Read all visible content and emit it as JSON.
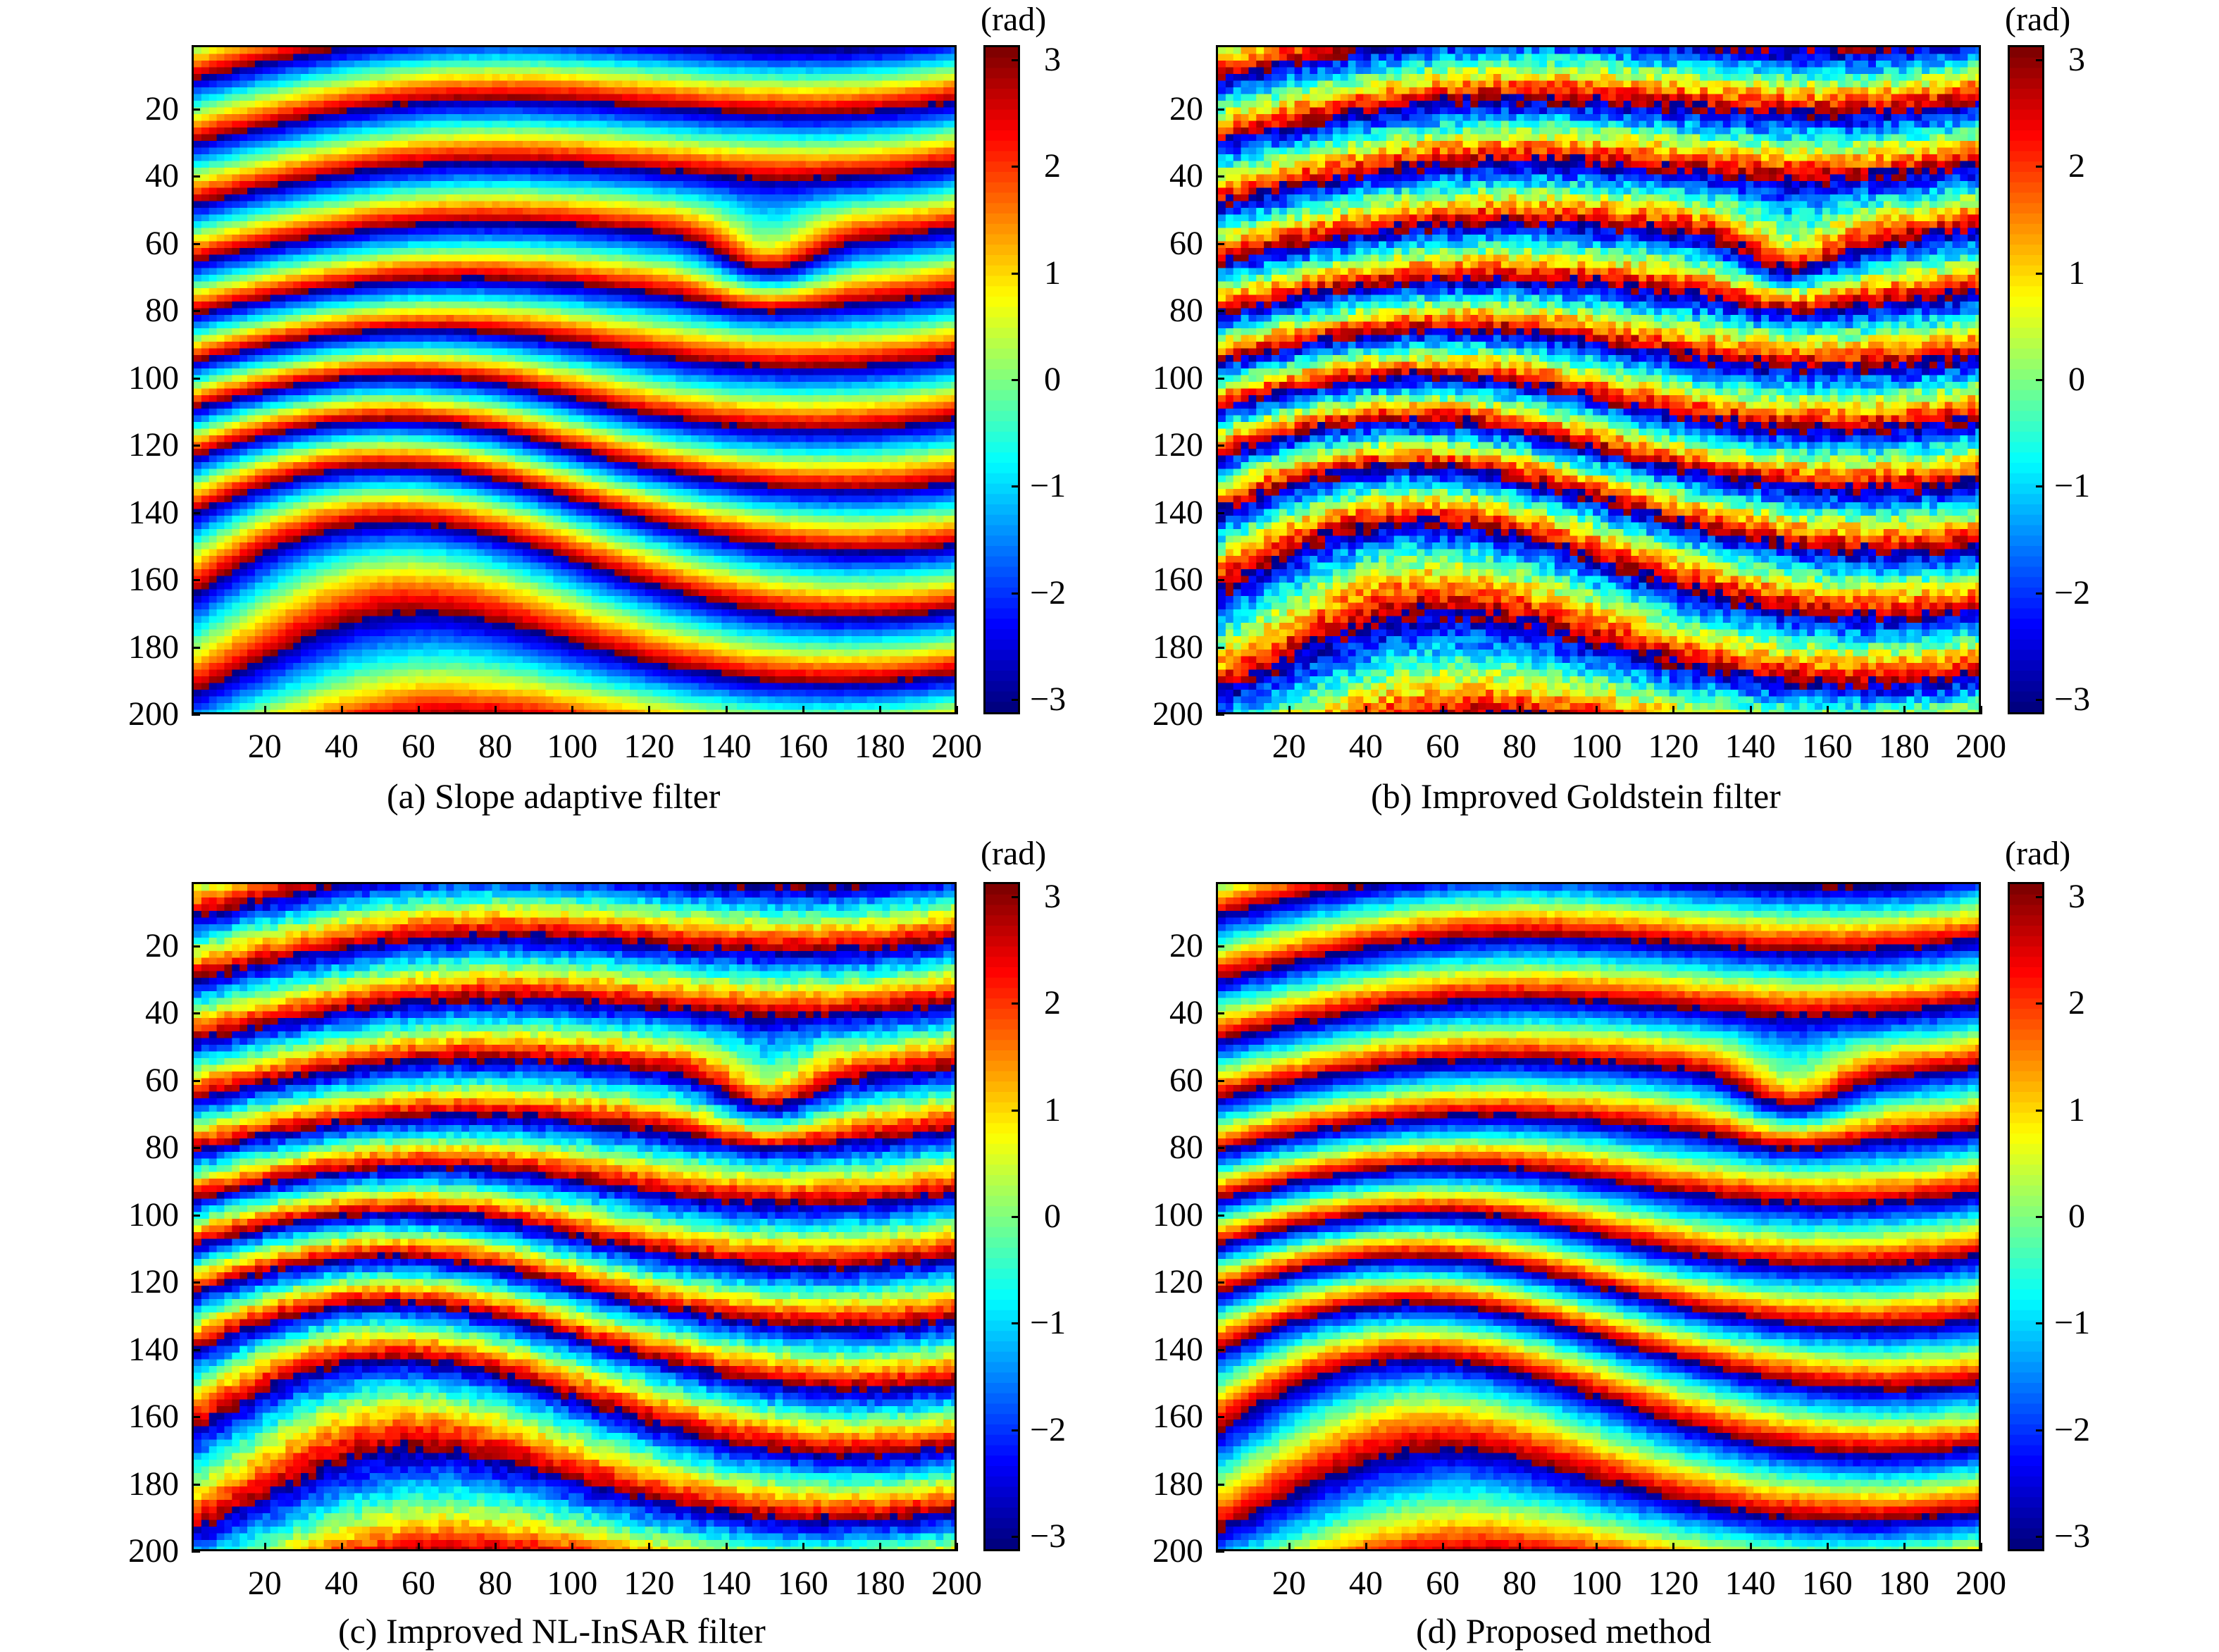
{
  "chart_data": [
    {
      "type": "heatmap",
      "title": "(a) Slope adaptive filter",
      "x_ticks": [
        "20",
        "40",
        "60",
        "80",
        "100",
        "120",
        "140",
        "160",
        "180",
        "200"
      ],
      "y_ticks": [
        "20",
        "40",
        "60",
        "80",
        "100",
        "120",
        "140",
        "160",
        "180",
        "200"
      ],
      "xlim": [
        1,
        200
      ],
      "ylim": [
        1,
        200
      ],
      "colorbar": {
        "unit": "(rad)",
        "ticks": [
          "3",
          "2",
          "1",
          "0",
          "−1",
          "−2",
          "−3"
        ],
        "range": [
          -3.14,
          3.14
        ]
      },
      "noise": 0.1
    },
    {
      "type": "heatmap",
      "title": "(b) Improved Goldstein filter",
      "x_ticks": [
        "20",
        "40",
        "60",
        "80",
        "100",
        "120",
        "140",
        "160",
        "180",
        "200"
      ],
      "y_ticks": [
        "20",
        "40",
        "60",
        "80",
        "100",
        "120",
        "140",
        "160",
        "180",
        "200"
      ],
      "xlim": [
        1,
        200
      ],
      "ylim": [
        1,
        200
      ],
      "colorbar": {
        "unit": "(rad)",
        "ticks": [
          "3",
          "2",
          "1",
          "0",
          "−1",
          "−2",
          "−3"
        ],
        "range": [
          -3.14,
          3.14
        ]
      },
      "noise": 0.55
    },
    {
      "type": "heatmap",
      "title": "(c) Improved NL-InSAR filter",
      "x_ticks": [
        "20",
        "40",
        "60",
        "80",
        "100",
        "120",
        "140",
        "160",
        "180",
        "200"
      ],
      "y_ticks": [
        "20",
        "40",
        "60",
        "80",
        "100",
        "120",
        "140",
        "160",
        "180",
        "200"
      ],
      "xlim": [
        1,
        200
      ],
      "ylim": [
        1,
        200
      ],
      "colorbar": {
        "unit": "(rad)",
        "ticks": [
          "3",
          "2",
          "1",
          "0",
          "−1",
          "−2",
          "−3"
        ],
        "range": [
          -3.14,
          3.14
        ]
      },
      "noise": 0.3
    },
    {
      "type": "heatmap",
      "title": "(d) Proposed method",
      "x_ticks": [
        "20",
        "40",
        "60",
        "80",
        "100",
        "120",
        "140",
        "160",
        "180",
        "200"
      ],
      "y_ticks": [
        "20",
        "40",
        "60",
        "80",
        "100",
        "120",
        "140",
        "160",
        "180",
        "200"
      ],
      "xlim": [
        1,
        200
      ],
      "ylim": [
        1,
        200
      ],
      "colorbar": {
        "unit": "(rad)",
        "ticks": [
          "3",
          "2",
          "1",
          "0",
          "−1",
          "−2",
          "−3"
        ],
        "range": [
          -3.14,
          3.14
        ]
      },
      "noise": 0.18
    }
  ]
}
